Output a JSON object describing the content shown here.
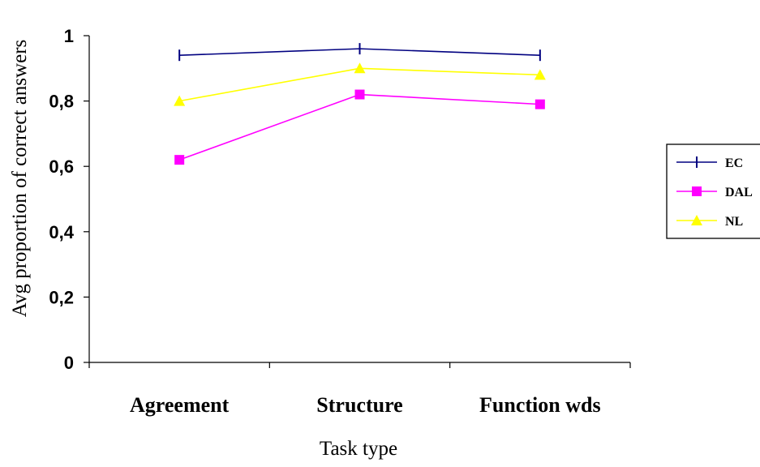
{
  "chart_data": {
    "type": "line",
    "categories": [
      "Agreement",
      "Structure",
      "Function wds"
    ],
    "series": [
      {
        "name": "EC",
        "values": [
          0.94,
          0.96,
          0.94
        ],
        "color": "#000080",
        "marker": "tick"
      },
      {
        "name": "DAL",
        "values": [
          0.62,
          0.82,
          0.79
        ],
        "color": "#ff00ff",
        "marker": "square"
      },
      {
        "name": "NL",
        "values": [
          0.8,
          0.9,
          0.88
        ],
        "color": "#ffff00",
        "marker": "triangle"
      }
    ],
    "xlabel": "Task type",
    "ylabel": "Avg proportion of correct answers",
    "ylim": [
      0,
      1
    ],
    "yticks": [
      {
        "value": 0,
        "label": "0"
      },
      {
        "value": 0.2,
        "label": "0,2"
      },
      {
        "value": 0.4,
        "label": "0,4"
      },
      {
        "value": 0.6,
        "label": "0,6"
      },
      {
        "value": 0.8,
        "label": "0,8"
      },
      {
        "value": 1,
        "label": "1"
      }
    ],
    "grid": false,
    "legend_position": "right"
  }
}
